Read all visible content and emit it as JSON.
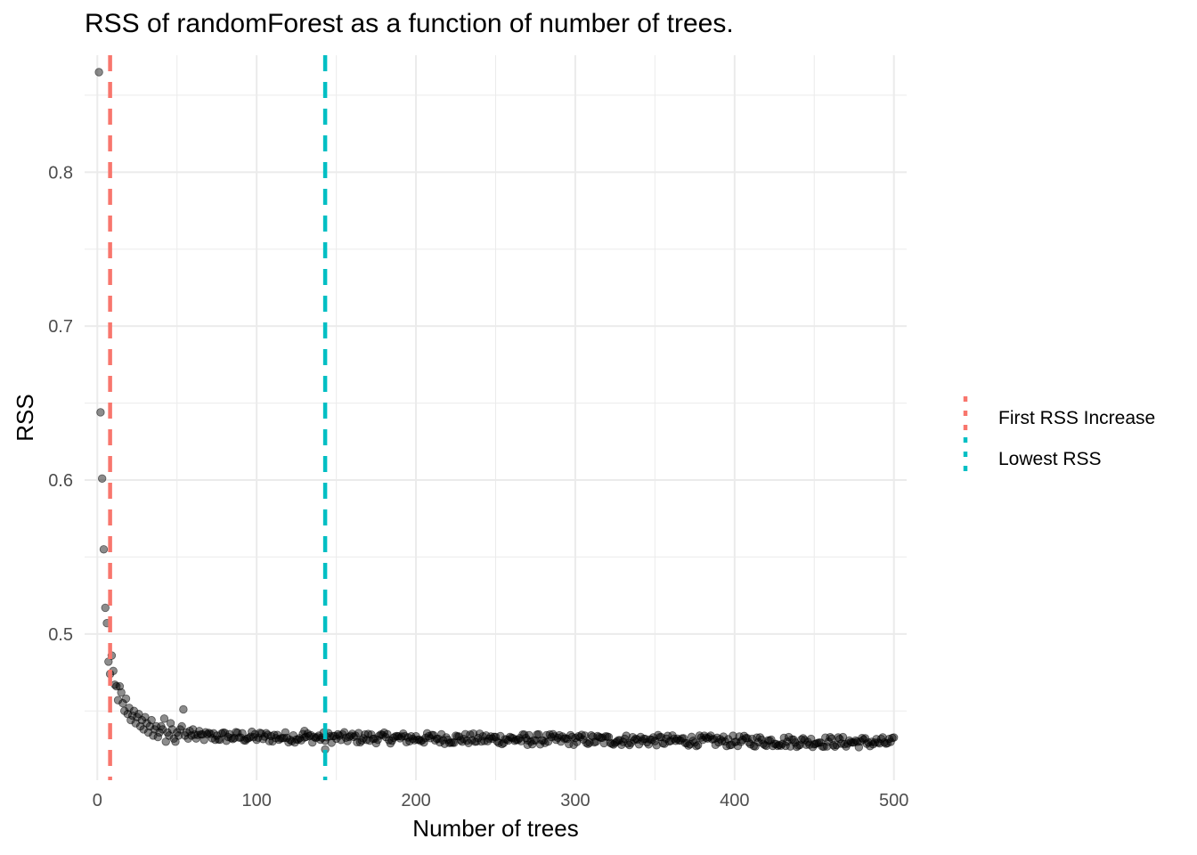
{
  "chart_data": {
    "type": "scatter",
    "title": "RSS of randomForest as a function of number of trees.",
    "xlabel": "Number of trees",
    "ylabel": "RSS",
    "xlim": [
      -8,
      508
    ],
    "ylim": [
      0.405,
      0.876
    ],
    "x_ticks": [
      0,
      100,
      200,
      300,
      400,
      500
    ],
    "y_ticks": [
      0.5,
      0.6,
      0.7,
      0.8
    ],
    "y_minor_ticks": [
      0.45,
      0.55,
      0.65,
      0.75,
      0.85
    ],
    "x_minor_ticks": [
      50,
      150,
      250,
      350,
      450
    ],
    "grid": true,
    "point_color": "#000000",
    "point_opacity": 0.45,
    "points_head": {
      "x": [
        1,
        2,
        3,
        4,
        5,
        6,
        7,
        8,
        9,
        10,
        11,
        12,
        13,
        14,
        15,
        16,
        17,
        18,
        19,
        20,
        21,
        22,
        23,
        24,
        25,
        26,
        27,
        28,
        29,
        30,
        31,
        32,
        33,
        34,
        35,
        36,
        37,
        38,
        39,
        40,
        41,
        42,
        43,
        44,
        45,
        46,
        47,
        48,
        49,
        50,
        51,
        52,
        53,
        54,
        55,
        56,
        57,
        58,
        59,
        60
      ],
      "y": [
        0.865,
        0.644,
        0.601,
        0.555,
        0.517,
        0.507,
        0.482,
        0.474,
        0.486,
        0.476,
        0.467,
        0.466,
        0.457,
        0.466,
        0.462,
        0.455,
        0.45,
        0.458,
        0.448,
        0.452,
        0.444,
        0.447,
        0.45,
        0.442,
        0.446,
        0.448,
        0.44,
        0.444,
        0.438,
        0.446,
        0.442,
        0.436,
        0.44,
        0.444,
        0.434,
        0.438,
        0.44,
        0.433,
        0.436,
        0.44,
        0.438,
        0.445,
        0.43,
        0.436,
        0.434,
        0.442,
        0.438,
        0.432,
        0.43,
        0.436,
        0.434,
        0.438,
        0.44,
        0.451,
        0.434,
        0.436,
        0.432,
        0.437,
        0.434,
        0.438
      ]
    },
    "tail": {
      "x_start": 61,
      "x_end": 500,
      "level_start": 0.4335,
      "level_end": 0.4295,
      "jitter": 0.0035
    },
    "outliers": [
      {
        "x": 143,
        "y": 0.425
      },
      {
        "x": 130,
        "y": 0.437
      },
      {
        "x": 270,
        "y": 0.428
      }
    ],
    "vlines": [
      {
        "name": "First RSS Increase",
        "x": 8,
        "color": "#F8766D"
      },
      {
        "name": "Lowest RSS",
        "x": 143,
        "color": "#00BFC4"
      }
    ],
    "legend": {
      "position": "right",
      "items": [
        {
          "label": "First RSS Increase",
          "color": "#F8766D"
        },
        {
          "label": "Lowest RSS",
          "color": "#00BFC4"
        }
      ]
    }
  }
}
